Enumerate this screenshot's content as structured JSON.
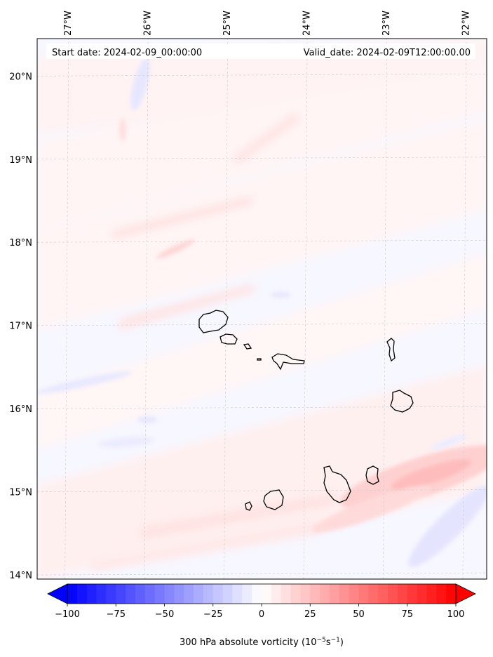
{
  "header": {
    "start_date": "Start date: 2024-02-09_00:00:00",
    "valid_date": "Valid_date: 2024-02-09T12:00:00.00"
  },
  "map": {
    "lon_labels": [
      "27°W",
      "26°W",
      "25°W",
      "24°W",
      "23°W",
      "22°W"
    ],
    "lat_labels": [
      "20°N",
      "19°N",
      "18°N",
      "17°N",
      "16°N",
      "15°N",
      "14°N"
    ],
    "lon_range": [
      -27.35,
      -21.7
    ],
    "lat_range": [
      13.95,
      20.45
    ],
    "gridlines": true,
    "colormap": "bwr"
  },
  "colorbar": {
    "min": -100,
    "max": 100,
    "tick_values": [
      -100,
      -75,
      -50,
      -25,
      0,
      25,
      50,
      75,
      100
    ],
    "tick_labels": [
      "−100",
      "−75",
      "−50",
      "−25",
      "0",
      "25",
      "50",
      "75",
      "100"
    ],
    "label_text": "300 hPa absolute vorticity (10",
    "label_exp1": "−5",
    "label_mid": "s",
    "label_exp2": "−1",
    "label_close": ")",
    "extend": "both"
  },
  "colors": {
    "negative": "#0000ff",
    "zero": "#ffffff",
    "positive": "#ff0000"
  }
}
